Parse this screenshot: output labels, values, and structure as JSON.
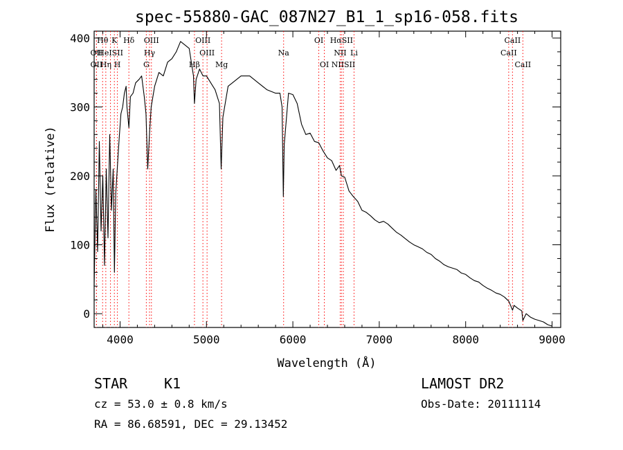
{
  "chart_data": {
    "type": "line",
    "title": "spec-55880-GAC_087N27_B1_1_sp16-058.fits",
    "xlabel": "Wavelength (Å)",
    "ylabel": "Flux (relative)",
    "xlim": [
      3700,
      9100
    ],
    "ylim": [
      -20,
      410
    ],
    "xticks": [
      4000,
      5000,
      6000,
      7000,
      8000,
      9000
    ],
    "yticks": [
      0,
      100,
      200,
      300,
      400
    ],
    "grid": false,
    "line_color": "#000000",
    "marker_color": "#ff0000",
    "series": [
      {
        "values": [
          [
            3700,
            40
          ],
          [
            3720,
            180
          ],
          [
            3740,
            90
          ],
          [
            3760,
            250
          ],
          [
            3780,
            120
          ],
          [
            3800,
            200
          ],
          [
            3820,
            70
          ],
          [
            3840,
            210
          ],
          [
            3860,
            110
          ],
          [
            3880,
            260
          ],
          [
            3900,
            150
          ],
          [
            3920,
            210
          ],
          [
            3935,
            60
          ],
          [
            3950,
            175
          ],
          [
            3970,
            215
          ],
          [
            3990,
            255
          ],
          [
            4010,
            290
          ],
          [
            4030,
            300
          ],
          [
            4050,
            320
          ],
          [
            4070,
            330
          ],
          [
            4080,
            300
          ],
          [
            4102,
            270
          ],
          [
            4120,
            315
          ],
          [
            4150,
            320
          ],
          [
            4180,
            335
          ],
          [
            4220,
            340
          ],
          [
            4250,
            345
          ],
          [
            4280,
            315
          ],
          [
            4300,
            290
          ],
          [
            4320,
            210
          ],
          [
            4340,
            260
          ],
          [
            4360,
            300
          ],
          [
            4400,
            330
          ],
          [
            4450,
            350
          ],
          [
            4500,
            345
          ],
          [
            4550,
            365
          ],
          [
            4600,
            370
          ],
          [
            4650,
            380
          ],
          [
            4700,
            395
          ],
          [
            4750,
            390
          ],
          [
            4800,
            385
          ],
          [
            4850,
            345
          ],
          [
            4861,
            305
          ],
          [
            4880,
            340
          ],
          [
            4920,
            355
          ],
          [
            4960,
            345
          ],
          [
            5000,
            345
          ],
          [
            5050,
            335
          ],
          [
            5100,
            325
          ],
          [
            5150,
            305
          ],
          [
            5170,
            210
          ],
          [
            5190,
            285
          ],
          [
            5250,
            330
          ],
          [
            5300,
            335
          ],
          [
            5400,
            345
          ],
          [
            5500,
            345
          ],
          [
            5600,
            335
          ],
          [
            5700,
            325
          ],
          [
            5800,
            320
          ],
          [
            5850,
            320
          ],
          [
            5875,
            300
          ],
          [
            5890,
            170
          ],
          [
            5900,
            245
          ],
          [
            5950,
            320
          ],
          [
            6000,
            318
          ],
          [
            6050,
            305
          ],
          [
            6100,
            275
          ],
          [
            6150,
            260
          ],
          [
            6200,
            262
          ],
          [
            6250,
            250
          ],
          [
            6300,
            248
          ],
          [
            6350,
            236
          ],
          [
            6400,
            226
          ],
          [
            6450,
            222
          ],
          [
            6500,
            208
          ],
          [
            6540,
            215
          ],
          [
            6563,
            200
          ],
          [
            6600,
            198
          ],
          [
            6650,
            178
          ],
          [
            6700,
            170
          ],
          [
            6750,
            163
          ],
          [
            6800,
            150
          ],
          [
            6850,
            147
          ],
          [
            6900,
            142
          ],
          [
            6950,
            136
          ],
          [
            7000,
            132
          ],
          [
            7050,
            134
          ],
          [
            7100,
            130
          ],
          [
            7150,
            124
          ],
          [
            7200,
            118
          ],
          [
            7250,
            114
          ],
          [
            7300,
            109
          ],
          [
            7350,
            104
          ],
          [
            7400,
            100
          ],
          [
            7450,
            97
          ],
          [
            7500,
            94
          ],
          [
            7550,
            89
          ],
          [
            7600,
            86
          ],
          [
            7650,
            80
          ],
          [
            7700,
            76
          ],
          [
            7750,
            71
          ],
          [
            7800,
            68
          ],
          [
            7850,
            66
          ],
          [
            7900,
            64
          ],
          [
            7950,
            59
          ],
          [
            8000,
            57
          ],
          [
            8050,
            52
          ],
          [
            8100,
            48
          ],
          [
            8150,
            46
          ],
          [
            8200,
            41
          ],
          [
            8250,
            37
          ],
          [
            8300,
            34
          ],
          [
            8350,
            30
          ],
          [
            8400,
            28
          ],
          [
            8450,
            24
          ],
          [
            8500,
            18
          ],
          [
            8542,
            5
          ],
          [
            8560,
            12
          ],
          [
            8600,
            8
          ],
          [
            8650,
            4
          ],
          [
            8662,
            -10
          ],
          [
            8700,
            0
          ],
          [
            8750,
            -5
          ],
          [
            8800,
            -8
          ],
          [
            8850,
            -10
          ],
          [
            8900,
            -12
          ],
          [
            8950,
            -16
          ],
          [
            9000,
            -18
          ]
        ]
      }
    ],
    "lines": [
      {
        "name": "Hθ",
        "wavelength": 3798,
        "row": 0
      },
      {
        "name": "K",
        "wavelength": 3934,
        "row": 0
      },
      {
        "name": "Hδ",
        "wavelength": 4102,
        "row": 0
      },
      {
        "name": "OIII",
        "wavelength": 4363,
        "row": 0
      },
      {
        "name": "OIII",
        "wavelength": 4959,
        "row": 0
      },
      {
        "name": "OI",
        "wavelength": 6300,
        "row": 0
      },
      {
        "name": "HαSII",
        "wavelength": 6563,
        "row": 0
      },
      {
        "name": "CaII",
        "wavelength": 8542,
        "row": 0
      },
      {
        "name": "OII",
        "wavelength": 3727,
        "row": 1
      },
      {
        "name": "HeISII",
        "wavelength": 3889,
        "row": 1
      },
      {
        "name": "Hγ",
        "wavelength": 4341,
        "row": 1
      },
      {
        "name": "OIII",
        "wavelength": 5007,
        "row": 1
      },
      {
        "name": "Na",
        "wavelength": 5893,
        "row": 1
      },
      {
        "name": "NII",
        "wavelength": 6548,
        "row": 1
      },
      {
        "name": "Li",
        "wavelength": 6708,
        "row": 1
      },
      {
        "name": "CaII",
        "wavelength": 8498,
        "row": 1
      },
      {
        "name": "OII",
        "wavelength": 3727,
        "row": 2
      },
      {
        "name": "Hη",
        "wavelength": 3835,
        "row": 2
      },
      {
        "name": "H",
        "wavelength": 3969,
        "row": 2
      },
      {
        "name": "G",
        "wavelength": 4304,
        "row": 2
      },
      {
        "name": "Hβ",
        "wavelength": 4861,
        "row": 2
      },
      {
        "name": "Mg",
        "wavelength": 5175,
        "row": 2
      },
      {
        "name": "OI",
        "wavelength": 6364,
        "row": 2
      },
      {
        "name": "NIISII",
        "wavelength": 6584,
        "row": 2
      },
      {
        "name": "CaII",
        "wavelength": 8662,
        "row": 2
      }
    ]
  },
  "info": {
    "object_class": "STAR",
    "subclass": "K1",
    "survey": "LAMOST DR2",
    "cz": "cz = 53.0 ± 0.8 km/s",
    "obs_date": "Obs-Date: 20111114",
    "coords": "RA =  86.68591, DEC =  29.13452"
  }
}
